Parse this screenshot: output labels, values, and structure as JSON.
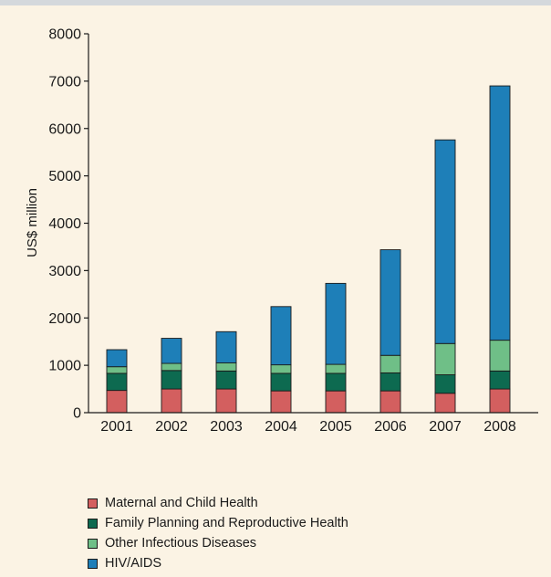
{
  "chart_data": {
    "type": "bar",
    "stacked": true,
    "categories": [
      "2001",
      "2002",
      "2003",
      "2004",
      "2005",
      "2006",
      "2007",
      "2008"
    ],
    "series": [
      {
        "name": "Maternal and Child Health",
        "color": "#d35f5f",
        "values": [
          470,
          500,
          500,
          460,
          460,
          460,
          410,
          500
        ]
      },
      {
        "name": "Family Planning and Reproductive Health",
        "color": "#0d6a50",
        "values": [
          360,
          390,
          380,
          370,
          370,
          380,
          390,
          380
        ]
      },
      {
        "name": "Other Infectious Diseases",
        "color": "#6fbf87",
        "values": [
          140,
          150,
          170,
          180,
          190,
          370,
          660,
          650
        ]
      },
      {
        "name": "HIV/AIDS",
        "color": "#1e7fb8",
        "values": [
          360,
          530,
          660,
          1230,
          1710,
          2230,
          4300,
          5370
        ]
      }
    ],
    "xlabel": "",
    "ylabel": "US$ million",
    "ylim": [
      0,
      8000
    ],
    "yticks": [
      "0",
      "1000",
      "2000",
      "3000",
      "4000",
      "5000",
      "6000",
      "7000",
      "8000"
    ],
    "grid": false,
    "legend_position": "bottom"
  }
}
